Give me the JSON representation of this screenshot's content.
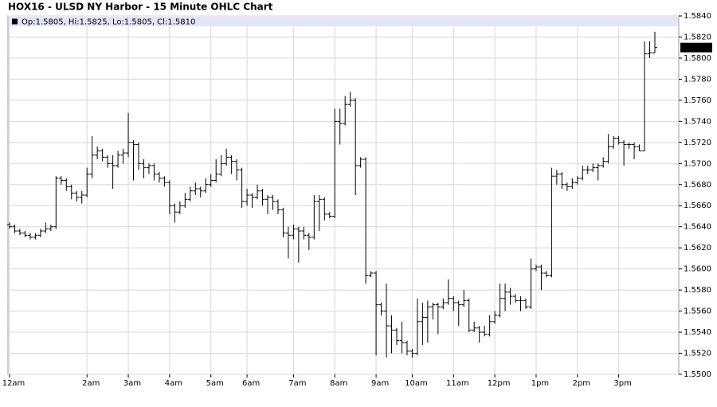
{
  "chart_data": {
    "type": "ohlc",
    "title": "HOX16 - ULSD NY Harbor - 15 Minute OHLC Chart",
    "ohlc_label": "Op:1.5805, Hi:1.5825, Lo:1.5805, Cl:1.5810",
    "last_label": "1.5810",
    "color": "#000000",
    "grid": true,
    "ylim": [
      1.55,
      1.584
    ],
    "yticks": [
      {
        "value": 1.55,
        "label": "1.5500"
      },
      {
        "value": 1.552,
        "label": "1.5520"
      },
      {
        "value": 1.554,
        "label": "1.5540"
      },
      {
        "value": 1.556,
        "label": "1.5560"
      },
      {
        "value": 1.558,
        "label": "1.5580"
      },
      {
        "value": 1.56,
        "label": "1.5600"
      },
      {
        "value": 1.562,
        "label": "1.5620"
      },
      {
        "value": 1.564,
        "label": "1.5640"
      },
      {
        "value": 1.566,
        "label": "1.5660"
      },
      {
        "value": 1.568,
        "label": "1.5680"
      },
      {
        "value": 1.57,
        "label": "1.5700"
      },
      {
        "value": 1.572,
        "label": "1.5720"
      },
      {
        "value": 1.574,
        "label": "1.5740"
      },
      {
        "value": 1.576,
        "label": "1.5760"
      },
      {
        "value": 1.578,
        "label": "1.5780"
      },
      {
        "value": 1.58,
        "label": "1.5800"
      },
      {
        "value": 1.582,
        "label": "1.5820"
      },
      {
        "value": 1.584,
        "label": "1.5840"
      }
    ],
    "categories": [
      "12am",
      null,
      null,
      null,
      null,
      null,
      null,
      null,
      null,
      null,
      null,
      null,
      null,
      null,
      null,
      "2am",
      null,
      null,
      null,
      null,
      null,
      null,
      null,
      "3am",
      null,
      null,
      null,
      null,
      null,
      null,
      null,
      "4am",
      null,
      null,
      null,
      null,
      null,
      null,
      null,
      "5am",
      null,
      null,
      null,
      null,
      null,
      null,
      "6am",
      null,
      null,
      null,
      null,
      null,
      null,
      null,
      null,
      "7am",
      null,
      null,
      null,
      null,
      null,
      null,
      null,
      "8am",
      null,
      null,
      null,
      null,
      null,
      null,
      null,
      "9am",
      null,
      null,
      null,
      null,
      null,
      null,
      "10am",
      null,
      null,
      null,
      null,
      null,
      null,
      null,
      "11am",
      null,
      null,
      null,
      null,
      null,
      null,
      null,
      "12pm",
      null,
      null,
      null,
      null,
      null,
      null,
      null,
      "1pm",
      null,
      null,
      null,
      null,
      null,
      null,
      null,
      "2pm",
      null,
      null,
      null,
      null,
      null,
      null,
      null,
      "3pm",
      null,
      null,
      null,
      null,
      null,
      null,
      null
    ],
    "open": [
      1.5642,
      1.564,
      1.5636,
      1.5634,
      1.5632,
      1.563,
      1.5632,
      1.5636,
      1.5638,
      1.564,
      1.5686,
      1.5684,
      1.5678,
      1.5672,
      1.5668,
      1.567,
      1.569,
      1.5708,
      1.5712,
      1.5706,
      1.57,
      1.5698,
      1.5708,
      1.571,
      1.572,
      1.5718,
      1.57,
      1.5696,
      1.5698,
      1.569,
      1.5686,
      1.5682,
      1.566,
      1.5654,
      1.566,
      1.5666,
      1.5674,
      1.5676,
      1.5674,
      1.568,
      1.5684,
      1.569,
      1.57,
      1.5706,
      1.5702,
      1.5694,
      1.5664,
      1.567,
      1.5668,
      1.5674,
      1.5666,
      1.5668,
      1.5664,
      1.5656,
      1.5634,
      1.5632,
      1.5638,
      1.5636,
      1.5632,
      1.563,
      1.5664,
      1.5666,
      1.5652,
      1.565,
      1.574,
      1.5738,
      1.5756,
      1.576,
      1.5698,
      1.5704,
      1.5594,
      1.5596,
      1.5566,
      1.556,
      1.5546,
      1.5542,
      1.5532,
      1.553,
      1.5522,
      1.552,
      1.555,
      1.5554,
      1.5564,
      1.5566,
      1.5564,
      1.5568,
      1.5572,
      1.5568,
      1.5566,
      1.557,
      1.5542,
      1.5544,
      1.554,
      1.5538,
      1.555,
      1.5556,
      1.5572,
      1.5578,
      1.5574,
      1.557,
      1.557,
      1.5564,
      1.56,
      1.5602,
      1.5596,
      1.5594,
      1.5688,
      1.569,
      1.568,
      1.5678,
      1.5682,
      1.5686,
      1.5694,
      1.5694,
      1.5696,
      1.5698,
      1.5702,
      1.5716,
      1.5724,
      1.572,
      1.5718,
      1.5718,
      1.5716,
      1.5712,
      1.5804,
      1.5805
    ],
    "high": [
      1.5644,
      1.5642,
      1.5638,
      1.5636,
      1.5634,
      1.5634,
      1.5638,
      1.5644,
      1.5642,
      1.5688,
      1.5688,
      1.5686,
      1.568,
      1.5674,
      1.5674,
      1.5696,
      1.5726,
      1.5716,
      1.5714,
      1.5708,
      1.5708,
      1.5712,
      1.5714,
      1.5748,
      1.5722,
      1.572,
      1.5704,
      1.57,
      1.57,
      1.5692,
      1.5688,
      1.5684,
      1.5662,
      1.5664,
      1.5672,
      1.5678,
      1.5682,
      1.5678,
      1.5686,
      1.569,
      1.5704,
      1.5708,
      1.5714,
      1.5708,
      1.5704,
      1.5696,
      1.5676,
      1.5672,
      1.568,
      1.5676,
      1.567,
      1.567,
      1.5666,
      1.5658,
      1.564,
      1.5642,
      1.564,
      1.564,
      1.5634,
      1.567,
      1.567,
      1.5668,
      1.5654,
      1.5752,
      1.5752,
      1.5764,
      1.5768,
      1.5762,
      1.5706,
      1.5706,
      1.5598,
      1.5598,
      1.5568,
      1.5586,
      1.5556,
      1.5544,
      1.555,
      1.5532,
      1.5524,
      1.5572,
      1.5568,
      1.557,
      1.5568,
      1.5568,
      1.5572,
      1.559,
      1.5574,
      1.557,
      1.558,
      1.5572,
      1.555,
      1.5546,
      1.5546,
      1.5556,
      1.556,
      1.5586,
      1.5586,
      1.5582,
      1.5576,
      1.5574,
      1.5572,
      1.561,
      1.5604,
      1.5604,
      1.5598,
      1.5696,
      1.5694,
      1.5692,
      1.5682,
      1.5686,
      1.5688,
      1.5698,
      1.5698,
      1.57,
      1.57,
      1.5706,
      1.5728,
      1.5726,
      1.5726,
      1.5722,
      1.572,
      1.572,
      1.5718,
      1.5816,
      1.5816,
      1.5825
    ],
    "low": [
      1.5638,
      1.5634,
      1.5632,
      1.563,
      1.5628,
      1.5628,
      1.563,
      1.5634,
      1.5636,
      1.5638,
      1.568,
      1.5674,
      1.5666,
      1.5664,
      1.5662,
      1.5668,
      1.5686,
      1.5704,
      1.5702,
      1.5696,
      1.5676,
      1.5696,
      1.57,
      1.5706,
      1.5684,
      1.5694,
      1.5686,
      1.569,
      1.5684,
      1.5682,
      1.5678,
      1.5652,
      1.5644,
      1.5652,
      1.5658,
      1.5664,
      1.567,
      1.5668,
      1.5672,
      1.5678,
      1.5682,
      1.5688,
      1.5698,
      1.569,
      1.5684,
      1.5658,
      1.566,
      1.5658,
      1.5666,
      1.566,
      1.5652,
      1.5656,
      1.5652,
      1.563,
      1.561,
      1.5628,
      1.5606,
      1.5628,
      1.5618,
      1.5628,
      1.5636,
      1.5646,
      1.5648,
      1.5648,
      1.5718,
      1.5736,
      1.5754,
      1.567,
      1.5696,
      1.5586,
      1.5592,
      1.5518,
      1.5556,
      1.5516,
      1.552,
      1.5528,
      1.552,
      1.5518,
      1.5516,
      1.5518,
      1.5528,
      1.553,
      1.5552,
      1.5538,
      1.5562,
      1.5566,
      1.556,
      1.5546,
      1.5564,
      1.554,
      1.554,
      1.553,
      1.5536,
      1.5536,
      1.5548,
      1.5554,
      1.556,
      1.5566,
      1.5568,
      1.556,
      1.5562,
      1.5562,
      1.5598,
      1.558,
      1.5592,
      1.5592,
      1.568,
      1.5676,
      1.5674,
      1.5676,
      1.568,
      1.5684,
      1.569,
      1.5692,
      1.5684,
      1.5696,
      1.57,
      1.5714,
      1.5718,
      1.5698,
      1.5714,
      1.5704,
      1.5712,
      1.5712,
      1.58,
      1.5805
    ],
    "close": [
      1.564,
      1.5636,
      1.5634,
      1.5632,
      1.563,
      1.5632,
      1.5636,
      1.5638,
      1.564,
      1.5686,
      1.5684,
      1.5678,
      1.5672,
      1.5668,
      1.567,
      1.569,
      1.5708,
      1.5712,
      1.5706,
      1.57,
      1.5698,
      1.5708,
      1.571,
      1.572,
      1.5718,
      1.57,
      1.5696,
      1.5698,
      1.569,
      1.5686,
      1.5682,
      1.566,
      1.5654,
      1.566,
      1.5666,
      1.5674,
      1.5676,
      1.5674,
      1.568,
      1.5684,
      1.569,
      1.57,
      1.5706,
      1.5702,
      1.5694,
      1.5664,
      1.567,
      1.5668,
      1.5674,
      1.5666,
      1.5668,
      1.5664,
      1.5656,
      1.5634,
      1.5632,
      1.5638,
      1.5636,
      1.5632,
      1.563,
      1.5664,
      1.5666,
      1.5652,
      1.565,
      1.574,
      1.5738,
      1.5756,
      1.576,
      1.5698,
      1.5704,
      1.5594,
      1.5596,
      1.5566,
      1.556,
      1.5546,
      1.5542,
      1.5532,
      1.553,
      1.5522,
      1.552,
      1.555,
      1.5554,
      1.5564,
      1.5566,
      1.5564,
      1.5568,
      1.5572,
      1.5568,
      1.5566,
      1.557,
      1.5542,
      1.5544,
      1.554,
      1.5538,
      1.555,
      1.5556,
      1.5572,
      1.5578,
      1.5574,
      1.557,
      1.557,
      1.5564,
      1.56,
      1.5602,
      1.5596,
      1.5594,
      1.5688,
      1.569,
      1.568,
      1.5678,
      1.5682,
      1.5686,
      1.5694,
      1.5694,
      1.5696,
      1.5698,
      1.5702,
      1.5716,
      1.5724,
      1.572,
      1.5718,
      1.5718,
      1.5716,
      1.5712,
      1.5804,
      1.5805,
      1.581
    ]
  }
}
